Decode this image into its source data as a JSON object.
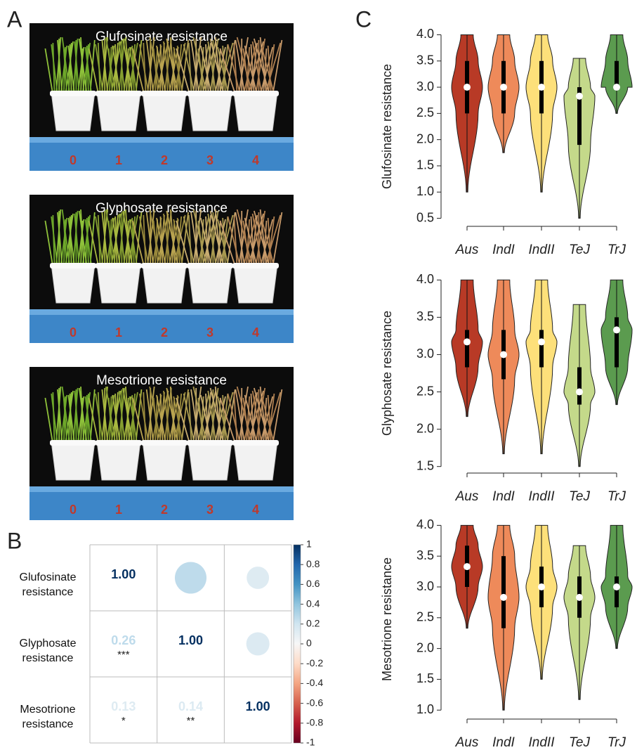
{
  "panel_labels": [
    "A",
    "B",
    "C"
  ],
  "photos": [
    {
      "title": "Glufosinate resistance",
      "scores": [
        "0",
        "1",
        "2",
        "3",
        "4"
      ]
    },
    {
      "title": "Glyphosate resistance",
      "scores": [
        "0",
        "1",
        "2",
        "3",
        "4"
      ]
    },
    {
      "title": "Mesotrione resistance",
      "scores": [
        "0",
        "1",
        "2",
        "3",
        "4"
      ]
    }
  ],
  "chart_data": [
    {
      "type": "corrplot",
      "labels": [
        "Glufosinate resistance",
        "Glyphosate resistance",
        "Mesotrione resistance"
      ],
      "values": [
        [
          1,
          0.26,
          0.13
        ],
        [
          0.26,
          1,
          0.14
        ],
        [
          0.13,
          0.14,
          1
        ]
      ],
      "value_labels": [
        [
          "1.00",
          null,
          null
        ],
        [
          "0.26",
          "1.00",
          null
        ],
        [
          "0.13",
          "0.14",
          "1.00"
        ]
      ],
      "significance": [
        [
          null,
          null,
          null
        ],
        [
          "***",
          null,
          null
        ],
        [
          "*",
          "**",
          null
        ]
      ],
      "clim": [
        -1,
        1
      ],
      "cticks": [
        1,
        0.8,
        0.6,
        0.4,
        0.2,
        0,
        -0.2,
        -0.4,
        -0.6,
        -0.8,
        -1
      ]
    },
    {
      "type": "violin",
      "ylabel": "Glufosinate resistance",
      "categories": [
        "Aus",
        "IndI",
        "IndII",
        "TeJ",
        "TrJ"
      ],
      "colors": [
        "#b83a26",
        "#ee8a5a",
        "#fde07a",
        "#c4d98a",
        "#5b9b4f"
      ],
      "min": [
        1.0,
        1.75,
        1.0,
        0.5,
        2.5
      ],
      "q1": [
        2.5,
        2.5,
        2.5,
        1.9,
        3.0
      ],
      "median": [
        3.0,
        3.0,
        3.0,
        2.83,
        3.0
      ],
      "q3": [
        3.5,
        3.5,
        3.5,
        3.0,
        3.5
      ],
      "max": [
        4.0,
        4.0,
        4.0,
        3.55,
        4.0
      ],
      "ylim": [
        0.4,
        4.1
      ],
      "yticks": [
        0.5,
        {
          "value": 1,
          "label": "1.0"
        },
        1.5,
        {
          "value": 2,
          "label": "2.0"
        },
        2.5,
        {
          "value": 3,
          "label": "3.0"
        },
        3.5,
        {
          "value": 4,
          "label": "4.0"
        }
      ]
    },
    {
      "type": "violin",
      "ylabel": "Glyphosate resistance",
      "categories": [
        "Aus",
        "IndI",
        "IndII",
        "TeJ",
        "TrJ"
      ],
      "colors": [
        "#b83a26",
        "#ee8a5a",
        "#fde07a",
        "#c4d98a",
        "#5b9b4f"
      ],
      "min": [
        2.17,
        1.67,
        1.67,
        1.5,
        2.33
      ],
      "q1": [
        2.83,
        2.67,
        2.83,
        2.33,
        2.83
      ],
      "median": [
        3.17,
        3.0,
        3.17,
        2.5,
        3.33
      ],
      "q3": [
        3.33,
        3.33,
        3.33,
        2.83,
        3.5
      ],
      "max": [
        4.0,
        4.0,
        4.0,
        3.67,
        4.0
      ],
      "ylim": [
        1.45,
        4.05
      ],
      "yticks": [
        1.5,
        {
          "value": 2,
          "label": "2.0"
        },
        2.5,
        {
          "value": 3,
          "label": "3.0"
        },
        3.5,
        {
          "value": 4,
          "label": "4.0"
        }
      ]
    },
    {
      "type": "violin",
      "ylabel": "Mesotrione resistance",
      "categories": [
        "Aus",
        "IndI",
        "IndII",
        "TeJ",
        "TrJ"
      ],
      "colors": [
        "#b83a26",
        "#ee8a5a",
        "#fde07a",
        "#c4d98a",
        "#5b9b4f"
      ],
      "min": [
        2.33,
        1.0,
        1.5,
        1.17,
        2.0
      ],
      "q1": [
        3.0,
        2.33,
        2.67,
        2.5,
        2.67
      ],
      "median": [
        3.33,
        2.83,
        3.0,
        2.83,
        3.0
      ],
      "q3": [
        3.67,
        3.5,
        3.33,
        3.17,
        3.17
      ],
      "max": [
        4.0,
        4.0,
        4.0,
        3.67,
        4.0
      ],
      "ylim": [
        0.9,
        4.05
      ],
      "yticks": [
        {
          "value": 1,
          "label": "1.0"
        },
        1.5,
        {
          "value": 2,
          "label": "2.0"
        },
        2.5,
        {
          "value": 3,
          "label": "3.0"
        },
        3.5,
        {
          "value": 4,
          "label": "4.0"
        }
      ]
    }
  ]
}
